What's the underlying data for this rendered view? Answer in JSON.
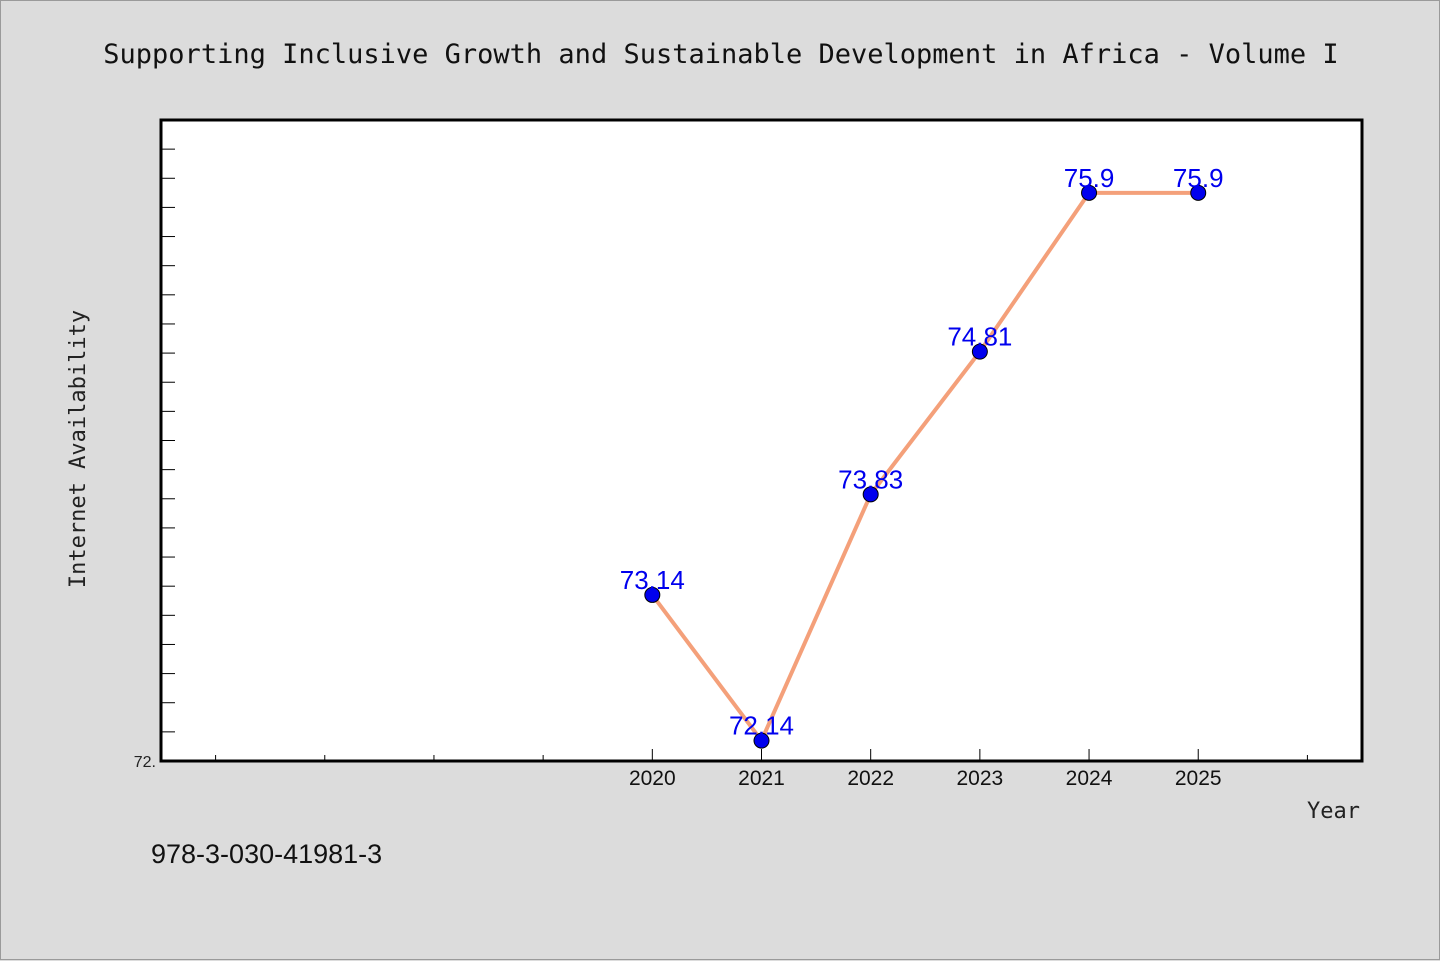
{
  "title": "Supporting Inclusive Growth and Sustainable Development in Africa - Volume I",
  "footer": "978-3-030-41981-3",
  "colors": {
    "background": "#dcdcdc",
    "plot_background": "#ffffff",
    "line": "#f4a07a",
    "marker": "#0000ee",
    "data_label": "#0000ee"
  },
  "chart_data": {
    "type": "line",
    "x": [
      2020,
      2021,
      2022,
      2023,
      2024,
      2025
    ],
    "series": [
      {
        "values": [
          73.14,
          72.14,
          73.83,
          74.81,
          75.9,
          75.9
        ],
        "value_labels": [
          "73.14",
          "72.14",
          "73.83",
          "74.81",
          "75.9",
          "75.9"
        ]
      }
    ],
    "x_tick_labels": [
      "2020",
      "2021",
      "2022",
      "2023",
      "2024",
      "2025"
    ],
    "xlabel": "Year",
    "ylabel": "Internet Availability",
    "y_tick_labels": [
      "72."
    ],
    "xlim": [
      2015.5,
      2026.5
    ],
    "ylim": [
      72.0,
      76.4
    ],
    "legend": "none",
    "grid": false
  }
}
